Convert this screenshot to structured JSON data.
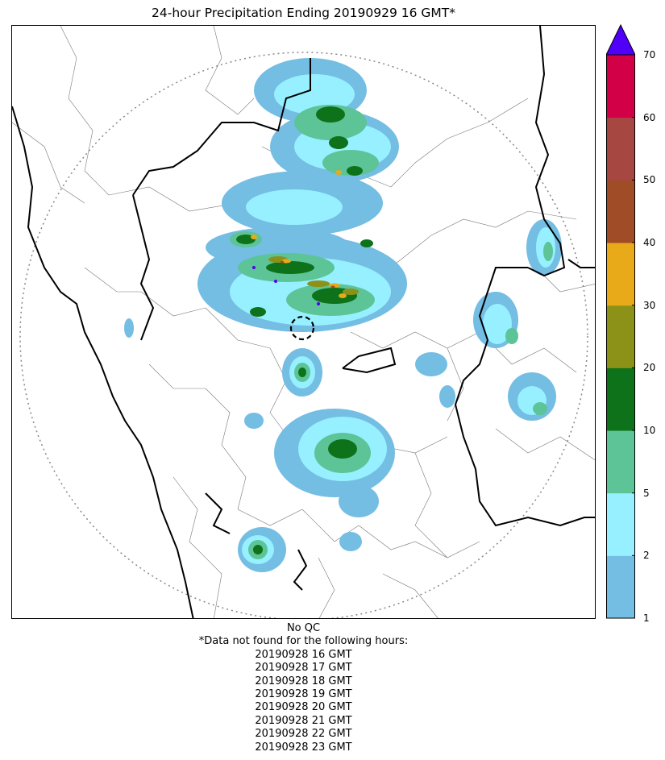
{
  "title": "24-hour Precipitation Ending 20190929 16 GMT*",
  "colorbar": {
    "levels": [
      {
        "label": "1",
        "value": 1
      },
      {
        "label": "2",
        "value": 2
      },
      {
        "label": "5",
        "value": 5
      },
      {
        "label": "10",
        "value": 10
      },
      {
        "label": "20",
        "value": 20
      },
      {
        "label": "30",
        "value": 30
      },
      {
        "label": "40",
        "value": 40
      },
      {
        "label": "50",
        "value": 50
      },
      {
        "label": "60",
        "value": 60
      },
      {
        "label": "70",
        "value": 70
      }
    ],
    "colors": [
      "#74bde3",
      "#96f0ff",
      "#5cc497",
      "#0d721a",
      "#8c9218",
      "#e8aa18",
      "#a04c26",
      "#a64841",
      "#d20046"
    ],
    "extend_color": "#5000f8"
  },
  "notes": {
    "qc": "No QC",
    "missing_header": "*Data not found for the following hours:",
    "missing_hours": [
      "20190928 16 GMT",
      "20190928 17 GMT",
      "20190928 18 GMT",
      "20190928 19 GMT",
      "20190928 20 GMT",
      "20190928 21 GMT",
      "20190928 22 GMT",
      "20190928 23 GMT"
    ]
  }
}
